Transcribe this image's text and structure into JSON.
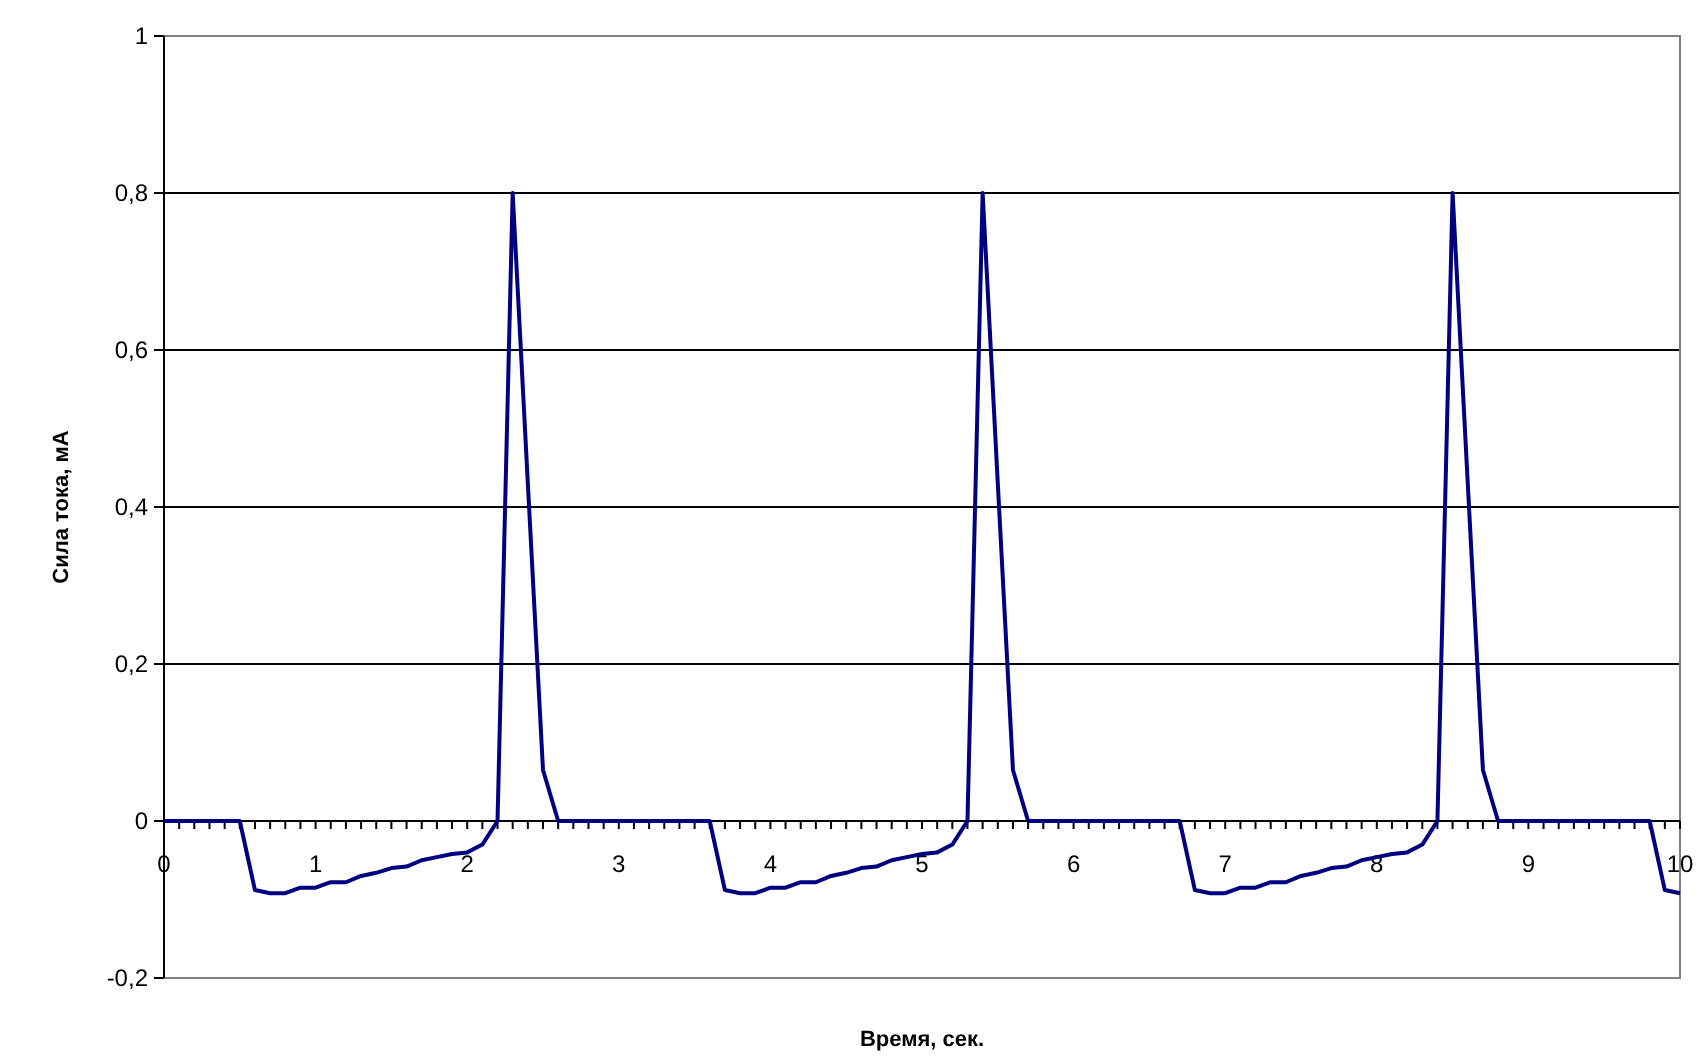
{
  "chart_data": {
    "type": "line",
    "xlabel": "Время, сек.",
    "ylabel": "Сила тока, мА",
    "x": [
      0,
      0.1,
      0.2,
      0.3,
      0.4,
      0.5,
      0.6,
      0.7,
      0.8,
      0.9,
      1,
      1.1,
      1.2,
      1.3,
      1.4,
      1.5,
      1.6,
      1.7,
      1.8,
      1.9,
      2,
      2.1,
      2.2,
      2.3,
      2.4,
      2.5,
      2.6,
      2.7,
      2.8,
      2.9,
      3,
      3.1,
      3.2,
      3.3,
      3.4,
      3.5,
      3.6,
      3.7,
      3.8,
      3.9,
      4,
      4.1,
      4.2,
      4.3,
      4.4,
      4.5,
      4.6,
      4.7,
      4.8,
      4.9,
      5,
      5.1,
      5.2,
      5.3,
      5.4,
      5.5,
      5.6,
      5.7,
      5.8,
      5.9,
      6,
      6.1,
      6.2,
      6.3,
      6.4,
      6.5,
      6.6,
      6.7,
      6.8,
      6.9,
      7,
      7.1,
      7.2,
      7.3,
      7.4,
      7.5,
      7.6,
      7.7,
      7.8,
      7.9,
      8,
      8.1,
      8.2,
      8.3,
      8.4,
      8.5,
      8.6,
      8.7,
      8.8,
      8.9,
      9,
      9.1,
      9.2,
      9.3,
      9.4,
      9.5,
      9.6,
      9.7,
      9.8,
      9.9,
      10
    ],
    "series": [
      {
        "color": "#000080",
        "values": [
          0,
          0,
          0,
          0,
          0,
          0,
          -0.088,
          -0.092,
          -0.092,
          -0.085,
          -0.085,
          -0.078,
          -0.078,
          -0.07,
          -0.066,
          -0.06,
          -0.058,
          -0.05,
          -0.046,
          -0.042,
          -0.04,
          -0.03,
          0,
          0.8,
          0.43,
          0.065,
          0,
          0,
          0,
          0,
          0,
          0,
          0,
          0,
          0,
          0,
          0,
          -0.088,
          -0.092,
          -0.092,
          -0.085,
          -0.085,
          -0.078,
          -0.078,
          -0.07,
          -0.066,
          -0.06,
          -0.058,
          -0.05,
          -0.046,
          -0.042,
          -0.04,
          -0.03,
          0,
          0.8,
          0.43,
          0.065,
          0,
          0,
          0,
          0,
          0,
          0,
          0,
          0,
          0,
          0,
          0,
          -0.088,
          -0.092,
          -0.092,
          -0.085,
          -0.085,
          -0.078,
          -0.078,
          -0.07,
          -0.066,
          -0.06,
          -0.058,
          -0.05,
          -0.046,
          -0.042,
          -0.04,
          -0.03,
          0,
          0.8,
          0.43,
          0.065,
          0,
          0,
          0,
          0,
          0,
          0,
          0,
          0,
          0,
          0,
          0,
          -0.088,
          -0.092
        ]
      }
    ],
    "xlim": [
      0,
      10
    ],
    "xticks": [
      0,
      {
        "value": 0.1,
        "label": null
      },
      {
        "value": 0.2,
        "label": null
      },
      {
        "value": 0.3,
        "label": null
      },
      {
        "value": 0.4,
        "label": null
      },
      {
        "value": 0.5,
        "label": null
      },
      {
        "value": 0.6,
        "label": null
      },
      {
        "value": 0.7,
        "label": null
      },
      {
        "value": 0.8,
        "label": null
      },
      {
        "value": 0.9,
        "label": null
      },
      1,
      {
        "value": 1.1,
        "label": null
      },
      {
        "value": 1.2,
        "label": null
      },
      {
        "value": 1.3,
        "label": null
      },
      {
        "value": 1.4,
        "label": null
      },
      {
        "value": 1.5,
        "label": null
      },
      {
        "value": 1.6,
        "label": null
      },
      {
        "value": 1.7,
        "label": null
      },
      {
        "value": 1.8,
        "label": null
      },
      {
        "value": 1.9,
        "label": null
      },
      2,
      {
        "value": 2.1,
        "label": null
      },
      {
        "value": 2.2,
        "label": null
      },
      {
        "value": 2.3,
        "label": null
      },
      {
        "value": 2.4,
        "label": null
      },
      {
        "value": 2.5,
        "label": null
      },
      {
        "value": 2.6,
        "label": null
      },
      {
        "value": 2.7,
        "label": null
      },
      {
        "value": 2.8,
        "label": null
      },
      {
        "value": 2.9,
        "label": null
      },
      3,
      {
        "value": 3.1,
        "label": null
      },
      {
        "value": 3.2,
        "label": null
      },
      {
        "value": 3.3,
        "label": null
      },
      {
        "value": 3.4,
        "label": null
      },
      {
        "value": 3.5,
        "label": null
      },
      {
        "value": 3.6,
        "label": null
      },
      {
        "value": 3.7,
        "label": null
      },
      {
        "value": 3.8,
        "label": null
      },
      {
        "value": 3.9,
        "label": null
      },
      4,
      {
        "value": 4.1,
        "label": null
      },
      {
        "value": 4.2,
        "label": null
      },
      {
        "value": 4.3,
        "label": null
      },
      {
        "value": 4.4,
        "label": null
      },
      {
        "value": 4.5,
        "label": null
      },
      {
        "value": 4.6,
        "label": null
      },
      {
        "value": 4.7,
        "label": null
      },
      {
        "value": 4.8,
        "label": null
      },
      {
        "value": 4.9,
        "label": null
      },
      5,
      {
        "value": 5.1,
        "label": null
      },
      {
        "value": 5.2,
        "label": null
      },
      {
        "value": 5.3,
        "label": null
      },
      {
        "value": 5.4,
        "label": null
      },
      {
        "value": 5.5,
        "label": null
      },
      {
        "value": 5.6,
        "label": null
      },
      {
        "value": 5.7,
        "label": null
      },
      {
        "value": 5.8,
        "label": null
      },
      {
        "value": 5.9,
        "label": null
      },
      6,
      {
        "value": 6.1,
        "label": null
      },
      {
        "value": 6.2,
        "label": null
      },
      {
        "value": 6.3,
        "label": null
      },
      {
        "value": 6.4,
        "label": null
      },
      {
        "value": 6.5,
        "label": null
      },
      {
        "value": 6.6,
        "label": null
      },
      {
        "value": 6.7,
        "label": null
      },
      {
        "value": 6.8,
        "label": null
      },
      {
        "value": 6.9,
        "label": null
      },
      7,
      {
        "value": 7.1,
        "label": null
      },
      {
        "value": 7.2,
        "label": null
      },
      {
        "value": 7.3,
        "label": null
      },
      {
        "value": 7.4,
        "label": null
      },
      {
        "value": 7.5,
        "label": null
      },
      {
        "value": 7.6,
        "label": null
      },
      {
        "value": 7.7,
        "label": null
      },
      {
        "value": 7.8,
        "label": null
      },
      {
        "value": 7.9,
        "label": null
      },
      8,
      {
        "value": 8.1,
        "label": null
      },
      {
        "value": 8.2,
        "label": null
      },
      {
        "value": 8.3,
        "label": null
      },
      {
        "value": 8.4,
        "label": null
      },
      {
        "value": 8.5,
        "label": null
      },
      {
        "value": 8.6,
        "label": null
      },
      {
        "value": 8.7,
        "label": null
      },
      {
        "value": 8.8,
        "label": null
      },
      {
        "value": 8.9,
        "label": null
      },
      9,
      {
        "value": 9.1,
        "label": null
      },
      {
        "value": 9.2,
        "label": null
      },
      {
        "value": 9.3,
        "label": null
      },
      {
        "value": 9.4,
        "label": null
      },
      {
        "value": 9.5,
        "label": null
      },
      {
        "value": 9.6,
        "label": null
      },
      {
        "value": 9.7,
        "label": null
      },
      {
        "value": 9.8,
        "label": null
      },
      {
        "value": 9.9,
        "label": null
      },
      10
    ],
    "ylim": [
      -0.2,
      1
    ],
    "yticks": [
      {
        "value": -0.2,
        "label": "-0,2"
      },
      0,
      {
        "value": 0.2,
        "label": "0,2"
      },
      {
        "value": 0.4,
        "label": "0,4"
      },
      {
        "value": 0.6,
        "label": "0,6"
      },
      {
        "value": 0.8,
        "label": "0,8"
      },
      1
    ],
    "grid": "y",
    "marker": "none",
    "line_style": "solid"
  }
}
